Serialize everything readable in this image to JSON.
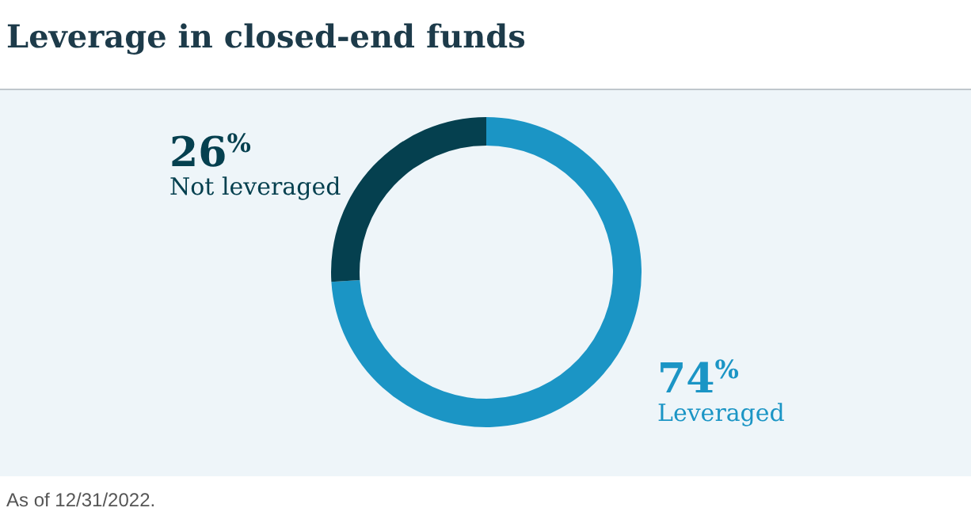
{
  "chart_data": {
    "type": "donut",
    "title": "Leverage in closed-end funds",
    "categories": [
      "Leveraged",
      "Not leveraged"
    ],
    "values": [
      74,
      26
    ],
    "colors": [
      "#1b95c5",
      "#05404f"
    ],
    "value_labels": [
      "74$^{%}$",
      "26$^{%}$"
    ],
    "annotations": [
      "As of 12/31/2022."
    ]
  }
}
